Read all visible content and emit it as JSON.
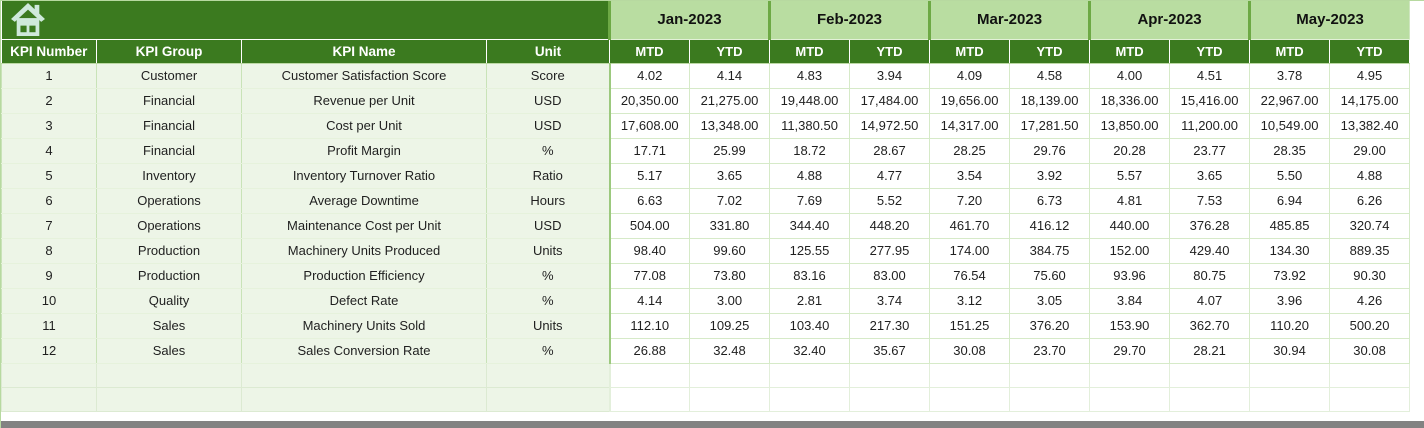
{
  "banner": {
    "home_icon": "home-icon"
  },
  "table": {
    "left_headers": [
      "KPI Number",
      "KPI Group",
      "KPI Name",
      "Unit"
    ],
    "months": [
      "Jan-2023",
      "Feb-2023",
      "Mar-2023",
      "Apr-2023",
      "May-2023"
    ],
    "sub_headers": [
      "MTD",
      "YTD"
    ],
    "rows": [
      {
        "kpi_number": "1",
        "kpi_group": "Customer",
        "kpi_name": "Customer Satisfaction Score",
        "unit": "Score",
        "values": [
          "4.02",
          "4.14",
          "4.83",
          "3.94",
          "4.09",
          "4.58",
          "4.00",
          "4.51",
          "3.78",
          "4.95"
        ]
      },
      {
        "kpi_number": "2",
        "kpi_group": "Financial",
        "kpi_name": "Revenue per Unit",
        "unit": "USD",
        "values": [
          "20,350.00",
          "21,275.00",
          "19,448.00",
          "17,484.00",
          "19,656.00",
          "18,139.00",
          "18,336.00",
          "15,416.00",
          "22,967.00",
          "14,175.00"
        ]
      },
      {
        "kpi_number": "3",
        "kpi_group": "Financial",
        "kpi_name": "Cost per Unit",
        "unit": "USD",
        "values": [
          "17,608.00",
          "13,348.00",
          "11,380.50",
          "14,972.50",
          "14,317.00",
          "17,281.50",
          "13,850.00",
          "11,200.00",
          "10,549.00",
          "13,382.40"
        ]
      },
      {
        "kpi_number": "4",
        "kpi_group": "Financial",
        "kpi_name": "Profit Margin",
        "unit": "%",
        "values": [
          "17.71",
          "25.99",
          "18.72",
          "28.67",
          "28.25",
          "29.76",
          "20.28",
          "23.77",
          "28.35",
          "29.00"
        ]
      },
      {
        "kpi_number": "5",
        "kpi_group": "Inventory",
        "kpi_name": "Inventory Turnover Ratio",
        "unit": "Ratio",
        "values": [
          "5.17",
          "3.65",
          "4.88",
          "4.77",
          "3.54",
          "3.92",
          "5.57",
          "3.65",
          "5.50",
          "4.88"
        ]
      },
      {
        "kpi_number": "6",
        "kpi_group": "Operations",
        "kpi_name": "Average Downtime",
        "unit": "Hours",
        "values": [
          "6.63",
          "7.02",
          "7.69",
          "5.52",
          "7.20",
          "6.73",
          "4.81",
          "7.53",
          "6.94",
          "6.26"
        ]
      },
      {
        "kpi_number": "7",
        "kpi_group": "Operations",
        "kpi_name": "Maintenance Cost per Unit",
        "unit": "USD",
        "values": [
          "504.00",
          "331.80",
          "344.40",
          "448.20",
          "461.70",
          "416.12",
          "440.00",
          "376.28",
          "485.85",
          "320.74"
        ]
      },
      {
        "kpi_number": "8",
        "kpi_group": "Production",
        "kpi_name": "Machinery Units Produced",
        "unit": "Units",
        "values": [
          "98.40",
          "99.60",
          "125.55",
          "277.95",
          "174.00",
          "384.75",
          "152.00",
          "429.40",
          "134.30",
          "889.35"
        ]
      },
      {
        "kpi_number": "9",
        "kpi_group": "Production",
        "kpi_name": "Production Efficiency",
        "unit": "%",
        "values": [
          "77.08",
          "73.80",
          "83.16",
          "83.00",
          "76.54",
          "75.60",
          "93.96",
          "80.75",
          "73.92",
          "90.30"
        ]
      },
      {
        "kpi_number": "10",
        "kpi_group": "Quality",
        "kpi_name": "Defect Rate",
        "unit": "%",
        "values": [
          "4.14",
          "3.00",
          "2.81",
          "3.74",
          "3.12",
          "3.05",
          "3.84",
          "4.07",
          "3.96",
          "4.26"
        ]
      },
      {
        "kpi_number": "11",
        "kpi_group": "Sales",
        "kpi_name": "Machinery Units Sold",
        "unit": "Units",
        "values": [
          "112.10",
          "109.25",
          "103.40",
          "217.30",
          "151.25",
          "376.20",
          "153.90",
          "362.70",
          "110.20",
          "500.20"
        ]
      },
      {
        "kpi_number": "12",
        "kpi_group": "Sales",
        "kpi_name": "Sales Conversion Rate",
        "unit": "%",
        "values": [
          "26.88",
          "32.48",
          "32.40",
          "35.67",
          "30.08",
          "23.70",
          "29.70",
          "28.21",
          "30.94",
          "30.08"
        ]
      }
    ],
    "empty_row_count": 2
  },
  "colors": {
    "header_dark_green": "#3b7a1f",
    "month_light_green": "#b9dda1",
    "group_separator_green": "#6da945",
    "row_light_green": "#edf5e7",
    "cell_border_green": "#d6eac8",
    "home_icon_fill": "#cfe9db",
    "bottom_bar_gray": "#828282"
  }
}
